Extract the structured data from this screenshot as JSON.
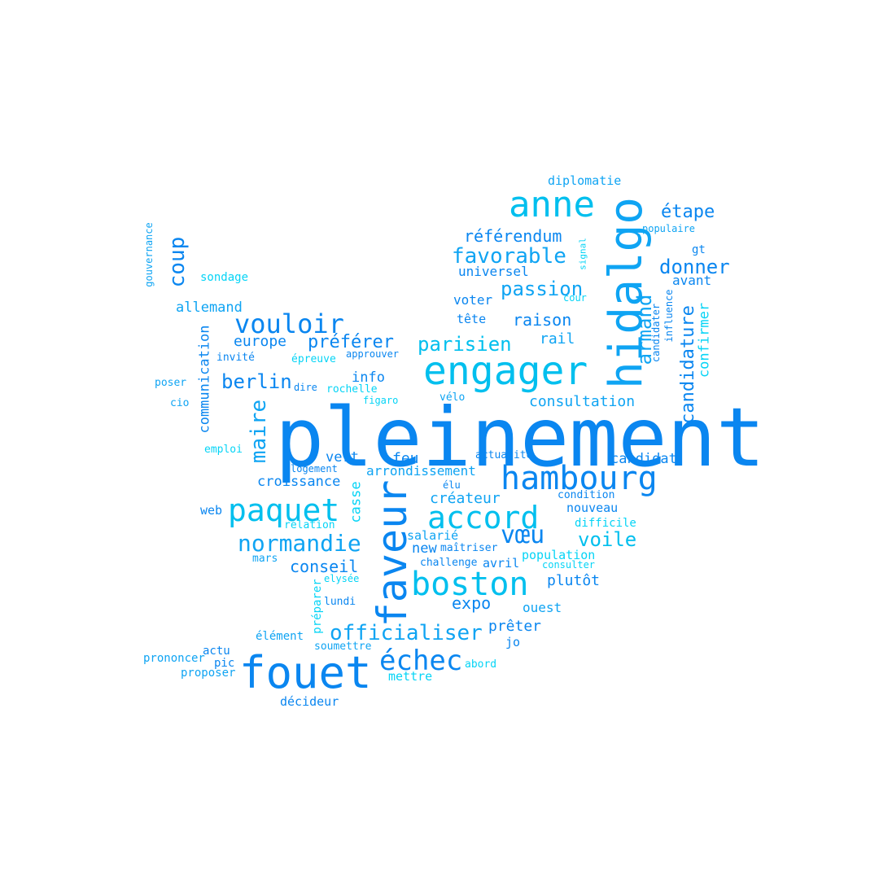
{
  "words": {
    "w0": "pleinement",
    "w1": "fouet",
    "w2": "engager",
    "w3": "hidalgo",
    "w4": "anne",
    "w5": "hambourg",
    "w6": "faveur",
    "w7": "boston",
    "w8": "accord",
    "w9": "paquet",
    "w10": "échec",
    "w11": "normandie",
    "w12": "vouloir",
    "w13": "officialiser",
    "w14": "vœu",
    "w15": "maire",
    "w16": "favorable",
    "w17": "donner",
    "w18": "passion",
    "w19": "référendum",
    "w20": "coup",
    "w21": "berlin",
    "w22": "parisien",
    "w23": "préférer",
    "w24": "armand",
    "w25": "candidature",
    "w26": "voile",
    "w27": "étape",
    "w28": "raison",
    "w29": "expo",
    "w30": "conseil",
    "w31": "consultation",
    "w32": "plutôt",
    "w33": "croissance",
    "w34": "allemand",
    "w35": "arrondissement",
    "w36": "créateur",
    "w37": "prêter",
    "w38": "europe",
    "w39": "info",
    "w40": "communication",
    "w41": "candidat",
    "w42": "vert",
    "w43": "feu",
    "w44": "rail",
    "w45": "universel",
    "w46": "voter",
    "w47": "confirmer",
    "w48": "casse",
    "w49": "nouveau",
    "w50": "ouest",
    "w51": "salarié",
    "w52": "new",
    "w53": "avant",
    "w54": "diplomatie",
    "w55": "web",
    "w56": "sondage",
    "w57": "tête",
    "w58": "avril",
    "w59": "population",
    "w60": "décideur",
    "w61": "mettre",
    "w62": "soumettre",
    "w63": "jo",
    "w64": "actu",
    "w65": "prononcer",
    "w66": "proposer",
    "w67": "pic",
    "w68": "élément",
    "w69": "lundi",
    "w70": "préparer",
    "w71": "mars",
    "w72": "elysée",
    "w73": "challenge",
    "w74": "maîtriser",
    "w75": "consulter",
    "w76": "difficile",
    "w77": "condition",
    "w78": "relation",
    "w79": "logement",
    "w80": "emploi",
    "w81": "élu",
    "w82": "actualité",
    "w83": "vélo",
    "w84": "figaro",
    "w85": "rochelle",
    "w86": "dire",
    "w87": "épreuve",
    "w88": "approuver",
    "w89": "invité",
    "w90": "poser",
    "w91": "cio",
    "w92": "gouvernance",
    "w93": "populaire",
    "w94": "gt",
    "w95": "signal",
    "w96": "cour",
    "w97": "candidater",
    "w98": "influence",
    "w99": "abord"
  }
}
